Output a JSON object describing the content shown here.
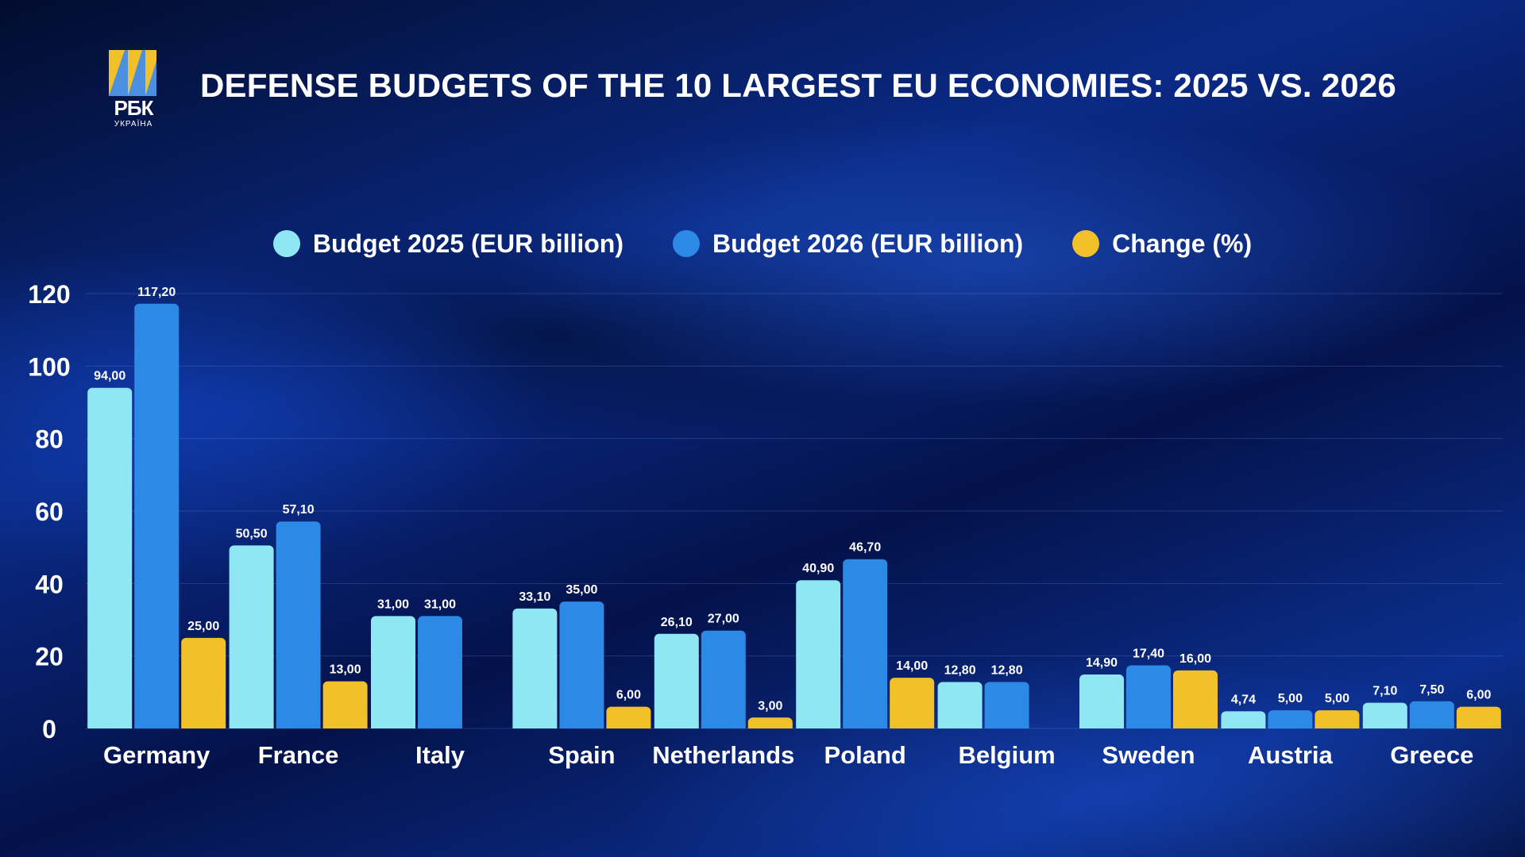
{
  "brand": {
    "name": "РБК",
    "sub": "УКРАЇНА"
  },
  "title": "DEFENSE BUDGETS OF THE 10 LARGEST EU ECONOMIES: 2025 VS. 2026",
  "colors": {
    "budget2025": "#8ee7f2",
    "budget2026": "#2c8ae6",
    "change": "#f2c028"
  },
  "legend": [
    {
      "label": "Budget 2025 (EUR billion)",
      "color": "#8ee7f2"
    },
    {
      "label": "Budget 2026 (EUR billion)",
      "color": "#2c8ae6"
    },
    {
      "label": "Change (%)",
      "color": "#f2c028"
    }
  ],
  "chart_data": {
    "type": "bar",
    "title": "DEFENSE BUDGETS OF THE 10 LARGEST EU ECONOMIES: 2025 VS. 2026",
    "categories": [
      "Germany",
      "France",
      "Italy",
      "Spain",
      "Netherlands",
      "Poland",
      "Belgium",
      "Sweden",
      "Austria",
      "Greece"
    ],
    "series": [
      {
        "name": "Budget 2025 (EUR billion)",
        "values": [
          94.0,
          50.5,
          31.0,
          33.1,
          26.1,
          40.9,
          12.8,
          14.9,
          4.74,
          7.1
        ],
        "labels": [
          "94,00",
          "50,50",
          "31,00",
          "33,10",
          "26,10",
          "40,90",
          "12,80",
          "14,90",
          "4,74",
          "7,10"
        ]
      },
      {
        "name": "Budget 2026 (EUR billion)",
        "values": [
          117.2,
          57.1,
          31.0,
          35.0,
          27.0,
          46.7,
          12.8,
          17.4,
          5.0,
          7.5
        ],
        "labels": [
          "117,20",
          "57,10",
          "31,00",
          "35,00",
          "27,00",
          "46,70",
          "12,80",
          "17,40",
          "5,00",
          "7,50"
        ]
      },
      {
        "name": "Change (%)",
        "values": [
          25.0,
          13.0,
          null,
          6.0,
          3.0,
          14.0,
          null,
          16.0,
          5.0,
          6.0
        ],
        "labels": [
          "25,00",
          "13,00",
          null,
          "6,00",
          "3,00",
          "14,00",
          null,
          "16,00",
          "5,00",
          "6,00"
        ]
      }
    ],
    "yticks": [
      0,
      20,
      40,
      60,
      80,
      100,
      120
    ],
    "ylim": [
      0,
      120
    ],
    "grid": true,
    "legend_position": "top-center"
  }
}
